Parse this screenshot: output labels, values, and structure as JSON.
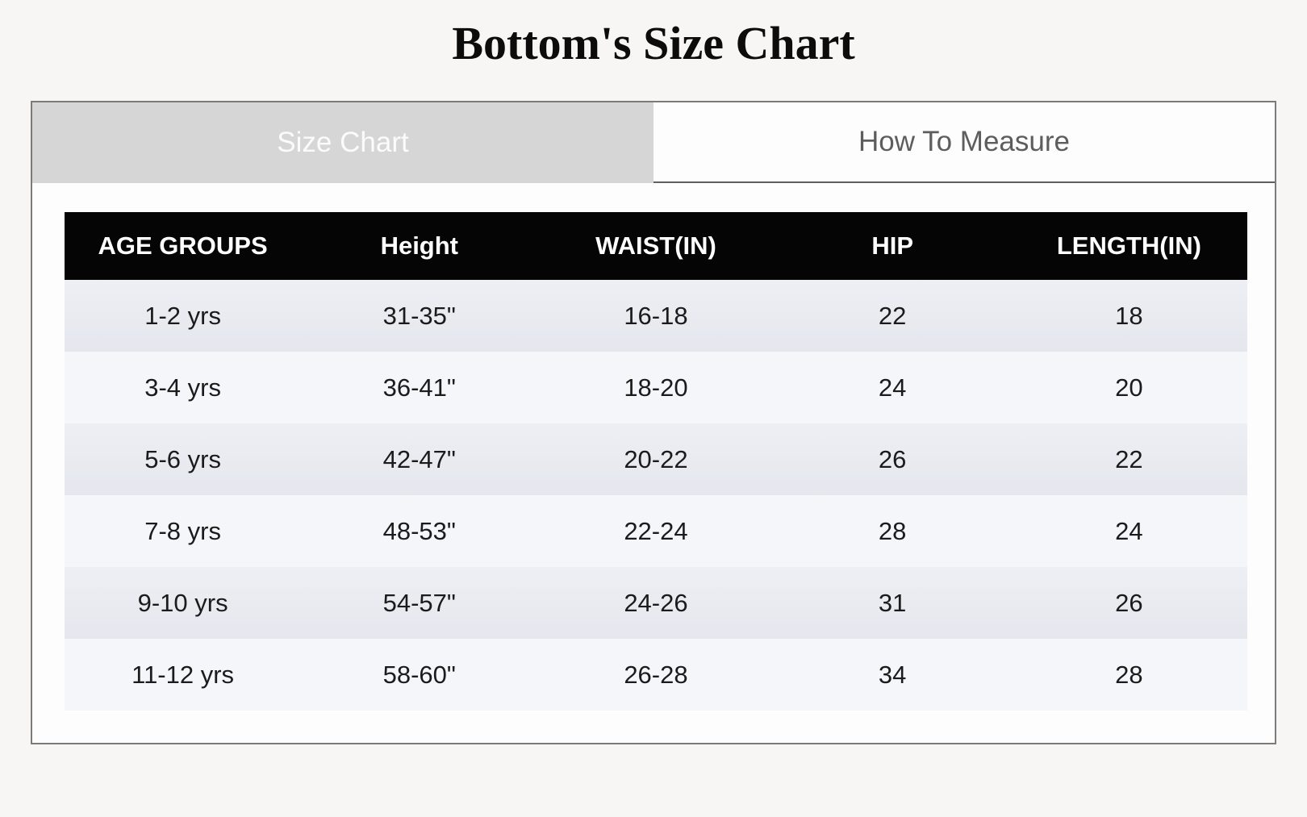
{
  "title": "Bottom's Size Chart",
  "tabs": [
    {
      "label": "Size Chart",
      "active": true
    },
    {
      "label": "How To Measure",
      "active": false
    }
  ],
  "table": {
    "headers": [
      "AGE GROUPS",
      "Height",
      "WAIST(IN)",
      "HIP",
      "LENGTH(IN)"
    ],
    "rows": [
      [
        "1-2 yrs",
        "31-35\"",
        "16-18",
        "22",
        "18"
      ],
      [
        "3-4 yrs",
        "36-41\"",
        "18-20",
        "24",
        "20"
      ],
      [
        "5-6 yrs",
        "42-47\"",
        "20-22",
        "26",
        "22"
      ],
      [
        "7-8 yrs",
        "48-53\"",
        "22-24",
        "28",
        "24"
      ],
      [
        "9-10 yrs",
        "54-57\"",
        "24-26",
        "31",
        "26"
      ],
      [
        "11-12 yrs",
        "58-60\"",
        "26-28",
        "34",
        "28"
      ]
    ]
  },
  "colors": {
    "page_bg": "#f7f6f5",
    "widget_bg": "#fdfdfd",
    "widget_border": "#7a7a7a",
    "active_tab_bg": "#d6d6d6",
    "active_tab_text": "#fbfbfb",
    "inactive_tab_text": "#5d5d5d",
    "header_bg": "#050505",
    "header_text": "#ffffff",
    "row_odd_bg": "#e9ebf1",
    "row_even_bg": "#f5f6f9",
    "body_text": "#1b1b1b"
  }
}
